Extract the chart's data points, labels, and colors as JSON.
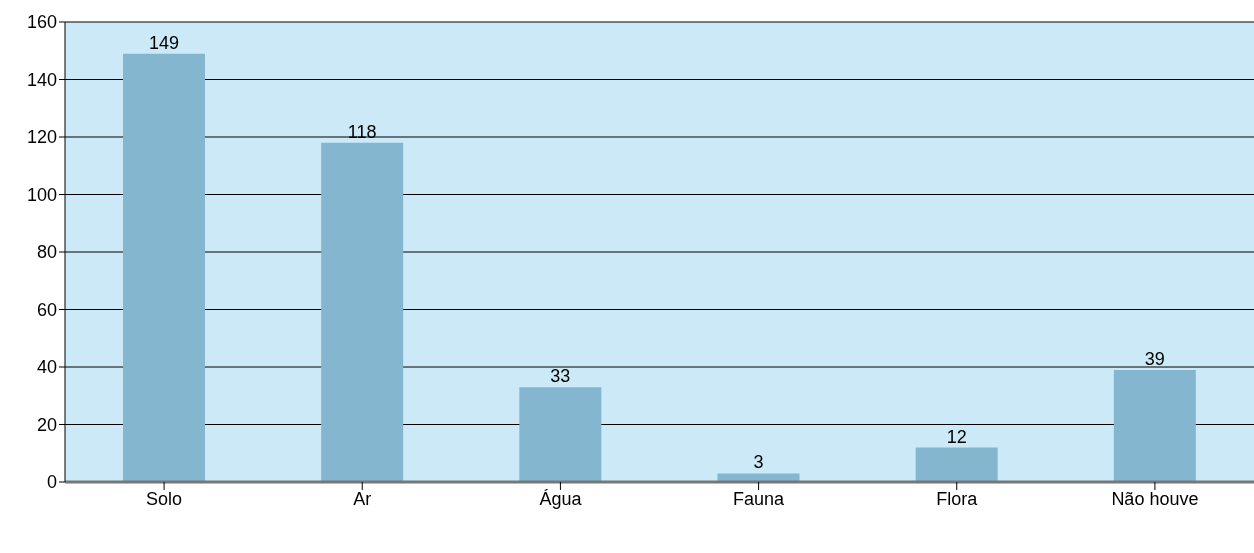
{
  "chart_data": {
    "type": "bar",
    "categories": [
      "Solo",
      "Ar",
      "Água",
      "Fauna",
      "Flora",
      "Não houve"
    ],
    "values": [
      149,
      118,
      33,
      3,
      12,
      39
    ],
    "color": "#84b6d0",
    "ylim": [
      0,
      160
    ],
    "yticks": [
      0,
      20,
      40,
      60,
      80,
      100,
      120,
      140,
      160
    ],
    "grid": "y",
    "data_labels": true
  }
}
